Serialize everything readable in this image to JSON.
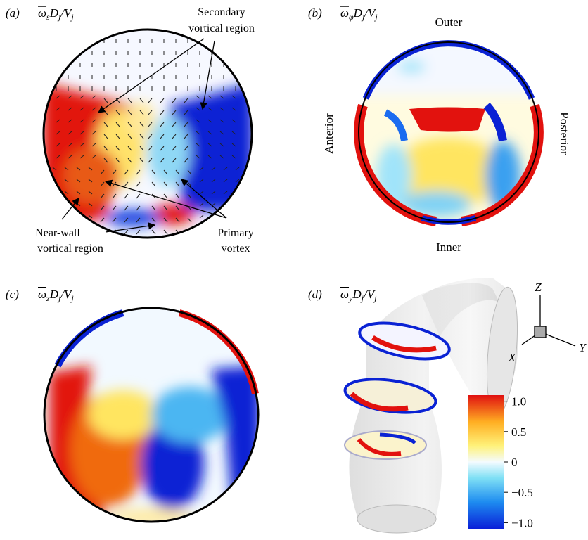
{
  "panels": [
    {
      "label": "(a)",
      "quantity": [
        {
          "t": "ω",
          "sub": "s"
        },
        {
          "t": "D",
          "sub": "j"
        },
        {
          "t": "/V",
          "sub": "j"
        }
      ],
      "annotations": [
        "Secondary",
        "vortical region",
        "Primary",
        "vortex",
        "Near-wall",
        "vortical region"
      ]
    },
    {
      "label": "(b)",
      "quantity": [
        {
          "t": "ω",
          "sub": "φ"
        },
        {
          "t": "D",
          "sub": "j"
        },
        {
          "t": "/V",
          "sub": "j"
        }
      ],
      "annotations": [
        "Outer",
        "Inner",
        "Anterior",
        "Posterior"
      ]
    },
    {
      "label": "(c)",
      "quantity": [
        {
          "t": "ω",
          "sub": "z"
        },
        {
          "t": "D",
          "sub": "j"
        },
        {
          "t": "/V",
          "sub": "j"
        }
      ]
    },
    {
      "label": "(d)",
      "quantity": [
        {
          "t": "ω",
          "sub": "y"
        },
        {
          "t": "D",
          "sub": "j"
        },
        {
          "t": "/V",
          "sub": "j"
        }
      ],
      "axes": [
        "Z",
        "X",
        "Y"
      ],
      "colorbar": {
        "range": [
          -1.1,
          1.1
        ],
        "ticks": [
          {
            "value": 1,
            "label": "1.0"
          },
          0.5,
          0,
          {
            "value": -0.5,
            "label": "−0.5"
          },
          {
            "value": -1,
            "label": "−1.0"
          }
        ]
      }
    }
  ]
}
